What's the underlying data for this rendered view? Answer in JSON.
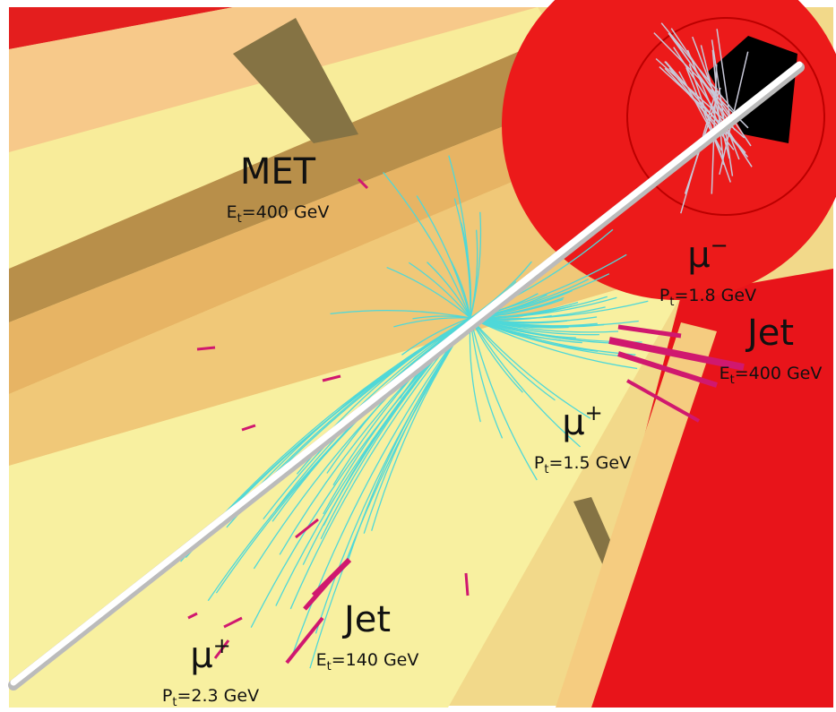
{
  "labels": [
    {
      "title": "MET",
      "symbol": "E",
      "sub": "t",
      "rest": "=400 GeV"
    },
    {
      "title": "μ",
      "sup": "−",
      "symbol": "P",
      "sub": "t",
      "rest": "=1.8 GeV"
    },
    {
      "title": "Jet",
      "symbol": "E",
      "sub": "t",
      "rest": "=400 GeV"
    },
    {
      "title": "μ",
      "sup": "+",
      "symbol": "P",
      "sub": "t",
      "rest": "=1.5 GeV"
    },
    {
      "title": "Jet",
      "symbol": "E",
      "sub": "t",
      "rest": "=140 GeV"
    },
    {
      "title": "μ",
      "sup": "+",
      "symbol": "P",
      "sub": "t",
      "rest": "=2.3 GeV"
    }
  ]
}
